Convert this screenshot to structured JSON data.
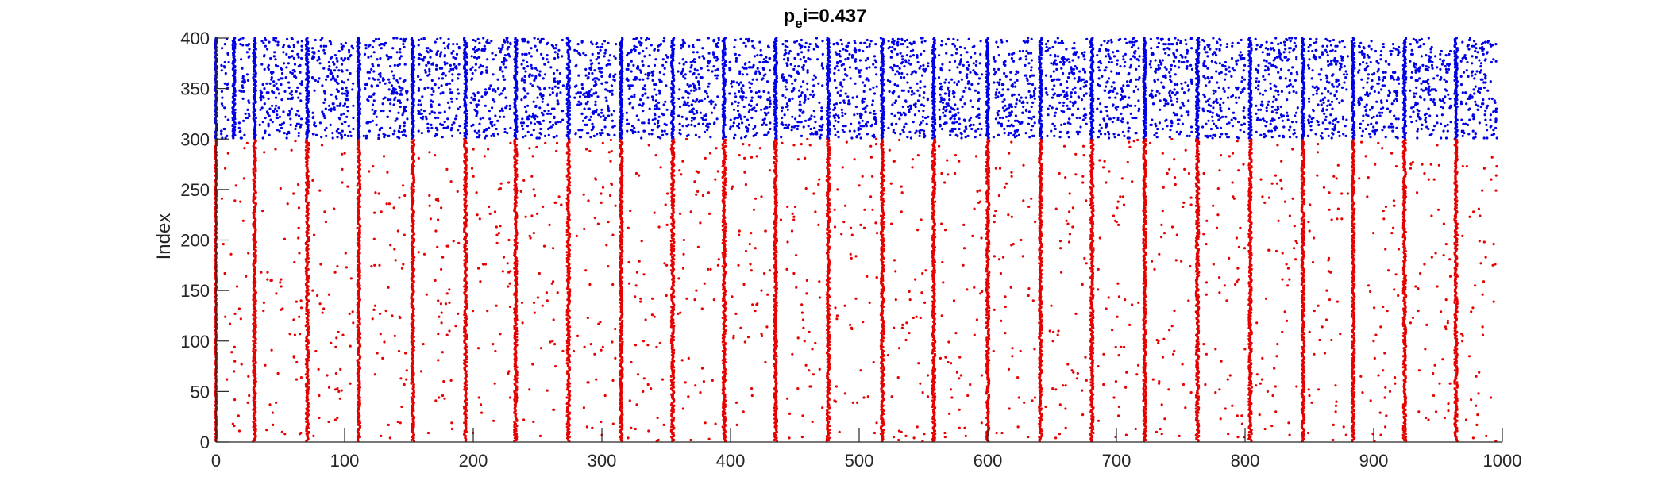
{
  "chart_data": {
    "type": "scatter",
    "title": {
      "base": "p",
      "subscript": "e",
      "rest": "i=0.437"
    },
    "xlabel": "",
    "ylabel": "Index",
    "xlim": [
      0,
      1000
    ],
    "ylim": [
      0,
      400
    ],
    "xticks": [
      0,
      100,
      200,
      300,
      400,
      500,
      600,
      700,
      800,
      900,
      1000
    ],
    "yticks": [
      0,
      50,
      100,
      150,
      200,
      250,
      300,
      350,
      400
    ],
    "grid": false,
    "legend": "none",
    "series": [
      {
        "color": "#e60000",
        "index_range": [
          1,
          300
        ],
        "burst_times": [
          0,
          30,
          71,
          111,
          153,
          194,
          233,
          274,
          315,
          355,
          395,
          435,
          476,
          518,
          558,
          600,
          641,
          681,
          722,
          763,
          804,
          845,
          884,
          924,
          964
        ]
      },
      {
        "color": "#0000e6",
        "index_range": [
          301,
          400
        ],
        "burst_times": [
          0,
          14,
          30,
          71,
          111,
          153,
          194,
          233,
          274,
          315,
          355,
          395,
          435,
          476,
          518,
          558,
          600,
          641,
          681,
          722,
          763,
          804,
          845,
          884,
          924,
          964
        ]
      }
    ]
  }
}
